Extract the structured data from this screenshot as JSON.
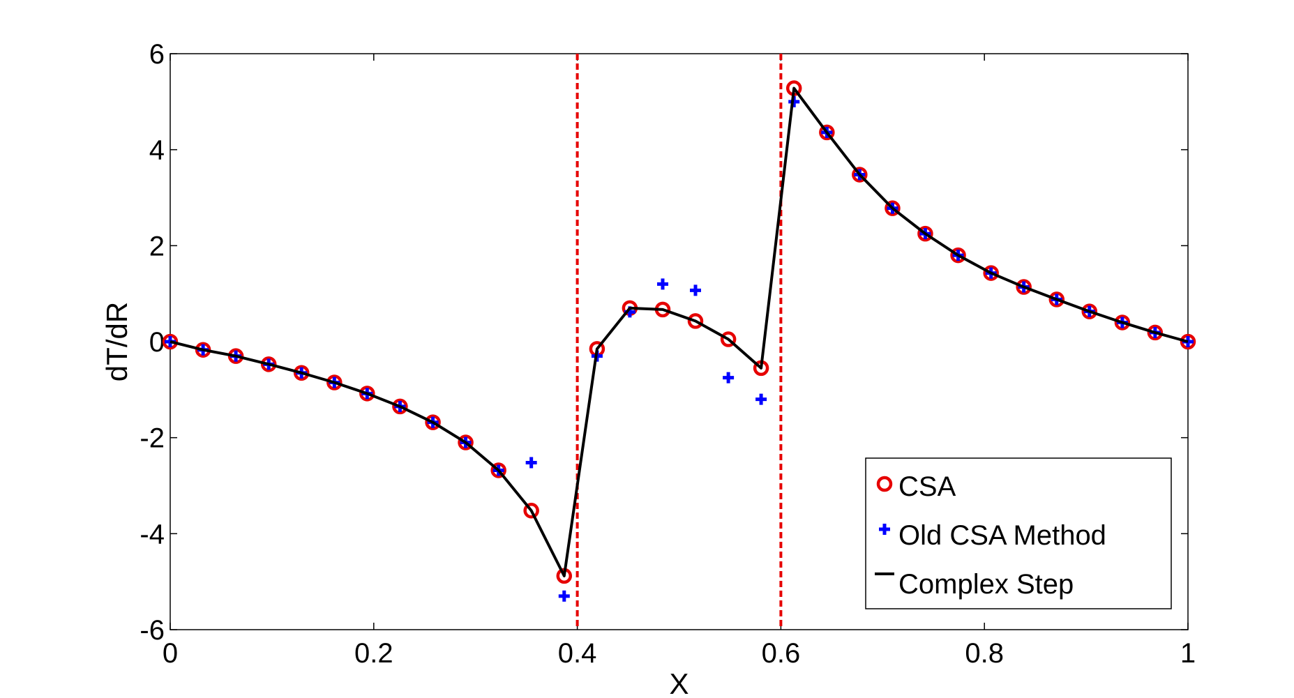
{
  "chart_data": {
    "type": "line",
    "title": "",
    "xlabel": "X",
    "ylabel": "dT/dR",
    "xlim": [
      0,
      1
    ],
    "ylim": [
      -6,
      6
    ],
    "xticks": [
      0,
      0.2,
      0.4,
      0.6,
      0.8,
      1
    ],
    "xtick_labels": [
      "0",
      "0.2",
      "0.4",
      "0.6",
      "0.8",
      "1"
    ],
    "yticks": [
      -6,
      -4,
      -2,
      0,
      2,
      4,
      6
    ],
    "ytick_labels": [
      "-6",
      "-4",
      "-2",
      "0",
      "2",
      "4",
      "6"
    ],
    "grid": false,
    "legend_position": "bottom-right",
    "vertical_lines": [
      {
        "x": 0.4,
        "color": "#e60000",
        "style": "dashed"
      },
      {
        "x": 0.6,
        "color": "#e60000",
        "style": "dashed"
      }
    ],
    "x": [
      0,
      0.0323,
      0.0645,
      0.0968,
      0.129,
      0.1613,
      0.1935,
      0.2258,
      0.2581,
      0.2903,
      0.3226,
      0.3548,
      0.3871,
      0.4194,
      0.4516,
      0.4839,
      0.5161,
      0.5484,
      0.5806,
      0.6129,
      0.6452,
      0.6774,
      0.7097,
      0.7419,
      0.7742,
      0.8065,
      0.8387,
      0.871,
      0.9032,
      0.9355,
      0.9677,
      1.0
    ],
    "series": [
      {
        "name": "CSA",
        "marker": "circle",
        "color": "#e60000",
        "values": [
          0,
          -0.17,
          -0.3,
          -0.47,
          -0.65,
          -0.85,
          -1.08,
          -1.35,
          -1.68,
          -2.1,
          -2.68,
          -3.52,
          -4.88,
          -0.15,
          0.7,
          0.67,
          0.43,
          0.05,
          -0.55,
          5.28,
          4.36,
          3.48,
          2.78,
          2.25,
          1.8,
          1.43,
          1.14,
          0.88,
          0.63,
          0.4,
          0.19,
          0
        ]
      },
      {
        "name": "Old CSA Method",
        "marker": "plus",
        "color": "#0000ff",
        "values": [
          0,
          -0.17,
          -0.3,
          -0.47,
          -0.65,
          -0.85,
          -1.08,
          -1.35,
          -1.68,
          -2.1,
          -2.68,
          -2.52,
          -5.3,
          -0.3,
          0.62,
          1.2,
          1.07,
          -0.75,
          -1.2,
          5.0,
          4.36,
          3.48,
          2.78,
          2.25,
          1.8,
          1.43,
          1.14,
          0.88,
          0.63,
          0.4,
          0.19,
          0
        ]
      },
      {
        "name": "Complex Step",
        "marker": "line",
        "color": "#000000",
        "values": [
          0,
          -0.17,
          -0.3,
          -0.47,
          -0.65,
          -0.85,
          -1.08,
          -1.35,
          -1.68,
          -2.1,
          -2.68,
          -3.52,
          -4.88,
          -0.15,
          0.7,
          0.67,
          0.43,
          0.05,
          -0.55,
          5.28,
          4.36,
          3.48,
          2.78,
          2.25,
          1.8,
          1.43,
          1.14,
          0.88,
          0.63,
          0.4,
          0.19,
          0
        ]
      }
    ]
  }
}
